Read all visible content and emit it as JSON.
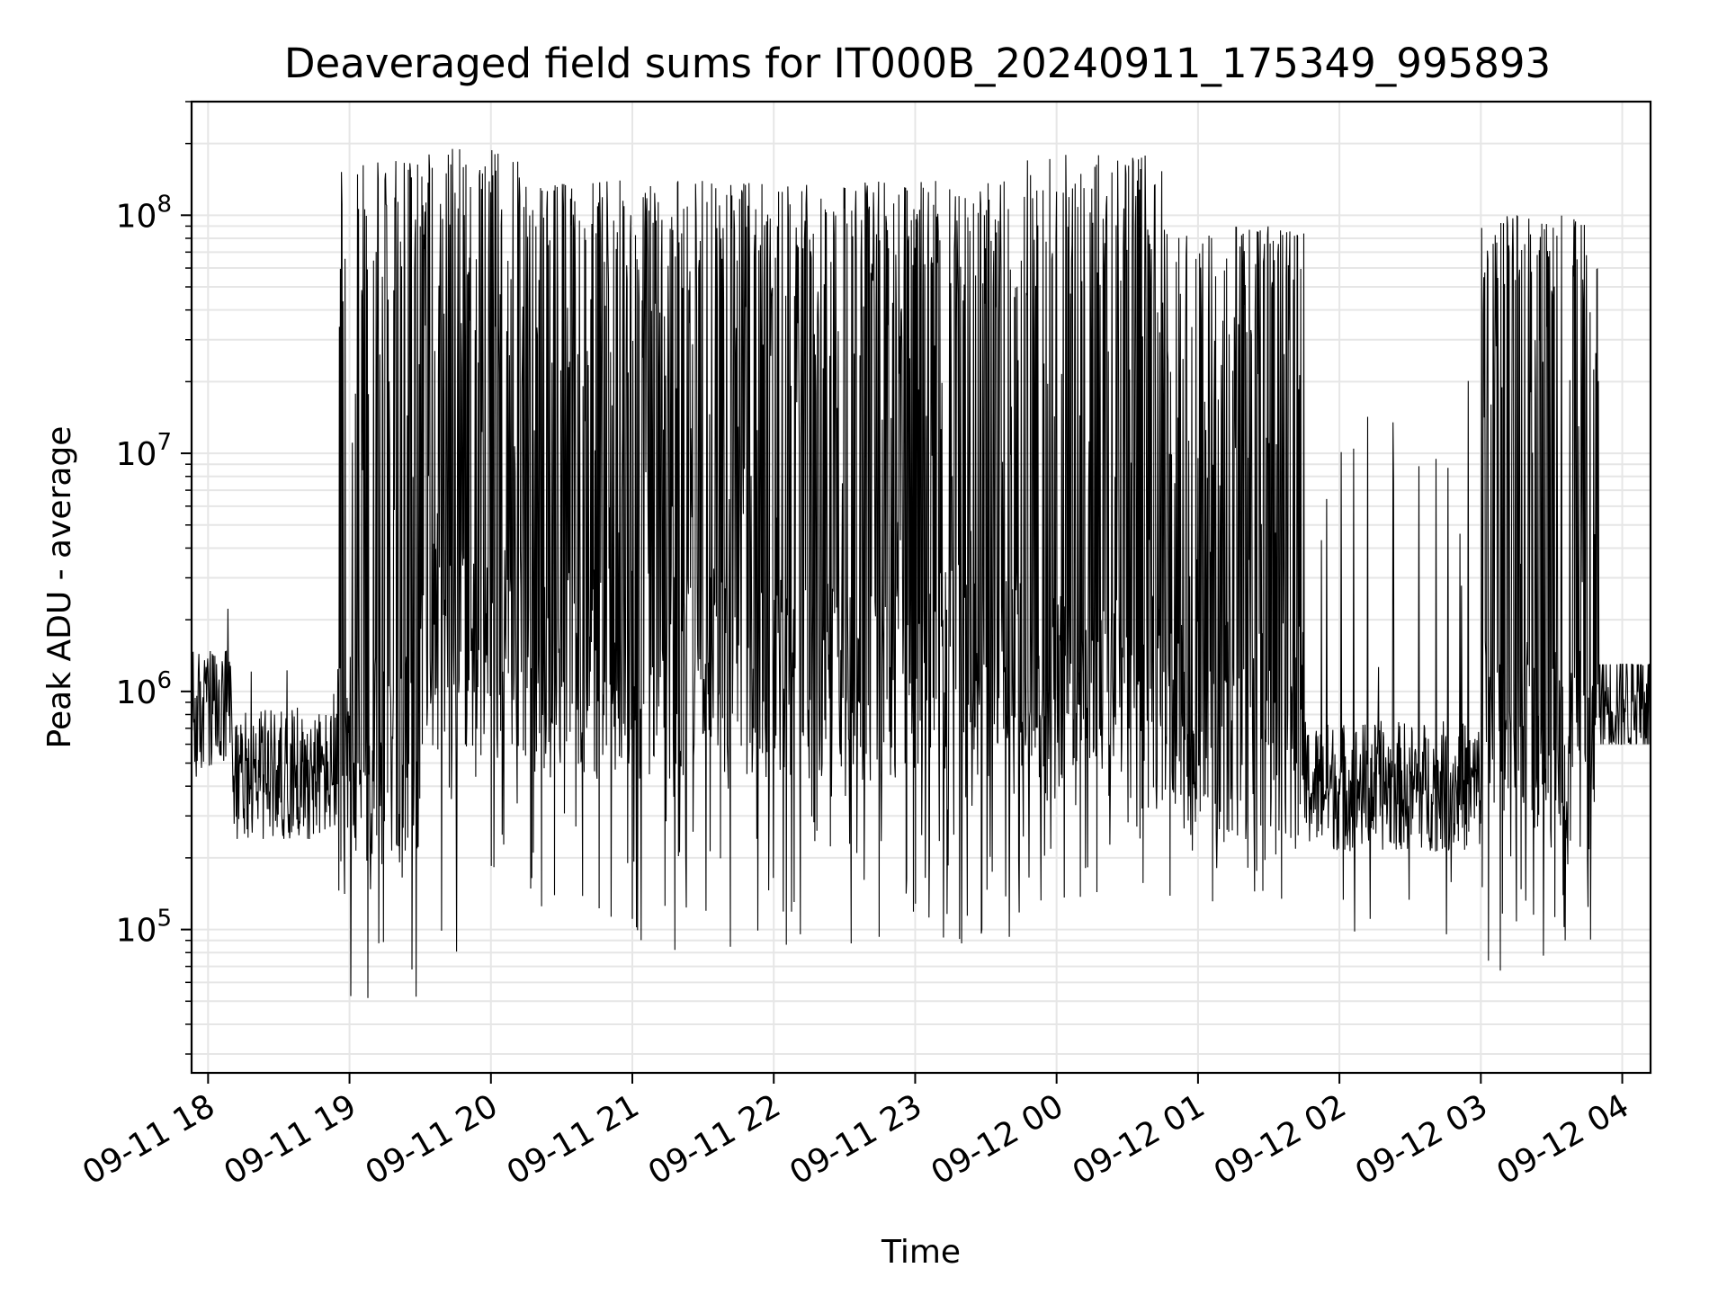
{
  "chart_data": {
    "type": "line",
    "title": "Deaveraged field sums for IT000B_20240911_175349_995893",
    "xlabel": "Time",
    "ylabel": "Peak ADU - average",
    "yscale": "log",
    "xlim": [
      "2024-09-11 17:53",
      "2024-09-12 04:12"
    ],
    "ylim": [
      25000,
      300000000
    ],
    "grid": true,
    "line_color": "#000000",
    "grid_color": "#e6e6e6",
    "x_ticks": [
      {
        "t": "2024-09-11 18:00",
        "label": "09-11 18"
      },
      {
        "t": "2024-09-11 19:00",
        "label": "09-11 19"
      },
      {
        "t": "2024-09-11 20:00",
        "label": "09-11 20"
      },
      {
        "t": "2024-09-11 21:00",
        "label": "09-11 21"
      },
      {
        "t": "2024-09-11 22:00",
        "label": "09-11 22"
      },
      {
        "t": "2024-09-11 23:00",
        "label": "09-11 23"
      },
      {
        "t": "2024-09-12 00:00",
        "label": "09-12 00"
      },
      {
        "t": "2024-09-12 01:00",
        "label": "09-12 01"
      },
      {
        "t": "2024-09-12 02:00",
        "label": "09-12 02"
      },
      {
        "t": "2024-09-12 03:00",
        "label": "09-12 03"
      },
      {
        "t": "2024-09-12 04:00",
        "label": "09-12 04"
      }
    ],
    "y_ticks": [
      {
        "v": 100000,
        "base": "10",
        "exp": "5"
      },
      {
        "v": 1000000,
        "base": "10",
        "exp": "6"
      },
      {
        "v": 10000000,
        "base": "10",
        "exp": "7"
      },
      {
        "v": 100000000,
        "base": "10",
        "exp": "8"
      }
    ],
    "series_envelope": {
      "description_of_values": "approximate per-segment range of the noisy signal, read from the plot",
      "segments": [
        {
          "from": "2024-09-11 17:53",
          "to": "2024-09-11 18:10",
          "baseline": 800000,
          "low": 400000,
          "high": 3500000
        },
        {
          "from": "2024-09-11 18:10",
          "to": "2024-09-11 18:55",
          "baseline": 450000,
          "low": 75000,
          "high": 2100000
        },
        {
          "from": "2024-09-11 18:55",
          "to": "2024-09-11 19:30",
          "baseline": 500000,
          "low": 38000,
          "high": 170000000
        },
        {
          "from": "2024-09-11 19:30",
          "to": "2024-09-11 20:15",
          "baseline": 1500000,
          "low": 75000,
          "high": 190000000
        },
        {
          "from": "2024-09-11 20:15",
          "to": "2024-09-11 23:45",
          "baseline": 1200000,
          "low": 80000,
          "high": 140000000
        },
        {
          "from": "2024-09-11 23:45",
          "to": "2024-09-12 00:45",
          "baseline": 900000,
          "low": 130000,
          "high": 180000000
        },
        {
          "from": "2024-09-12 00:45",
          "to": "2024-09-12 01:45",
          "baseline": 700000,
          "low": 120000,
          "high": 90000000
        },
        {
          "from": "2024-09-12 01:45",
          "to": "2024-09-12 03:00",
          "baseline": 400000,
          "low": 63000,
          "high": 30000000
        },
        {
          "from": "2024-09-12 03:00",
          "to": "2024-09-12 03:50",
          "baseline": 600000,
          "low": 65000,
          "high": 100000000
        },
        {
          "from": "2024-09-12 03:50",
          "to": "2024-09-12 04:12",
          "baseline": 950000,
          "low": 600000,
          "high": 1300000
        }
      ]
    }
  }
}
